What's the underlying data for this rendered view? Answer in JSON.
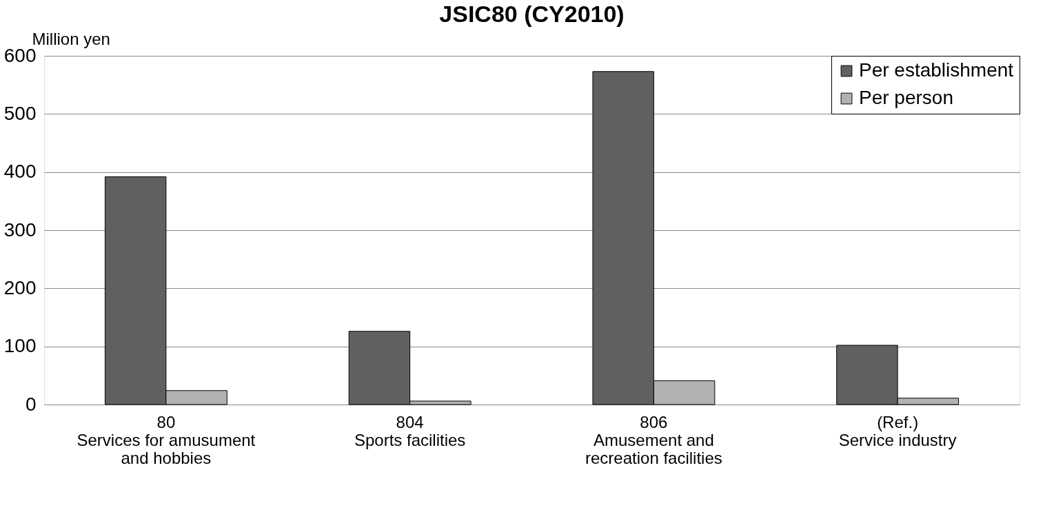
{
  "chart_data": {
    "type": "bar",
    "title": "JSIC80 (CY2010)",
    "ylabel": "Million yen",
    "categories": [
      "80\nServices for amusument\nand hobbies",
      "804\nSports facilities",
      "806\nAmusement and\nrecreation facilities",
      "(Ref.)\nService industry"
    ],
    "series": [
      {
        "name": "Per establishment",
        "color": "#606060",
        "values": [
          392,
          126,
          573,
          102
        ]
      },
      {
        "name": "Per person",
        "color": "#b2b2b2",
        "values": [
          24,
          6,
          41,
          11
        ]
      }
    ],
    "ylim": [
      0,
      600
    ],
    "yticks": [
      0,
      100,
      200,
      300,
      400,
      500,
      600
    ],
    "grid": "y",
    "legend": "top right"
  }
}
